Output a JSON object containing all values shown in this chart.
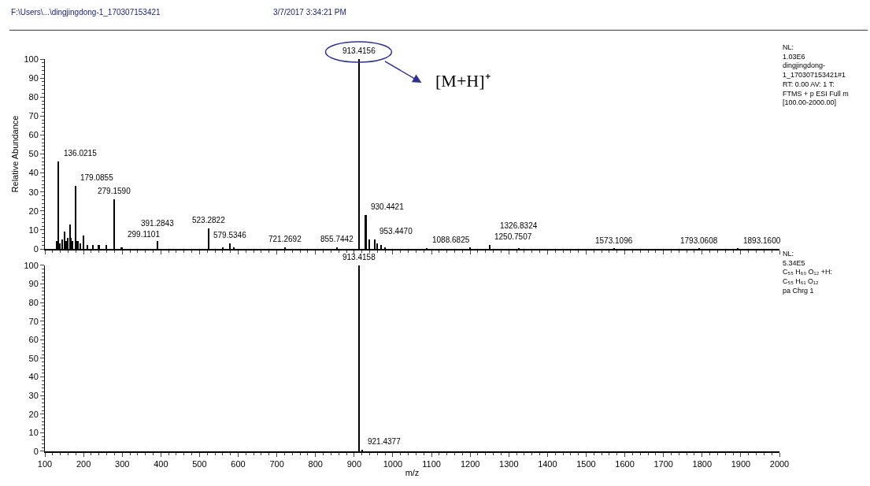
{
  "chart_data": [
    {
      "type": "bar",
      "ylabel": "Relative Abundance",
      "color": "#000000",
      "tick_labels": "y",
      "x": [
        132,
        136.0215,
        140,
        146,
        151,
        155,
        160,
        165,
        168,
        172,
        179.0855,
        185,
        192,
        200,
        210,
        225,
        240,
        260,
        279.159,
        299.1101,
        391.2843,
        523.2822,
        560,
        579.5346,
        590,
        721.2692,
        855.7442,
        913.4156,
        930.4421,
        940,
        953.447,
        960,
        970,
        980,
        1088.6825,
        1200,
        1250.7507,
        1326.8324,
        1573.1096,
        1793.0608,
        1893.16
      ],
      "values": [
        4,
        46,
        3,
        5,
        9,
        4,
        6,
        13,
        6,
        4,
        33,
        4,
        3,
        7,
        2,
        2,
        2,
        2,
        26,
        1,
        4,
        11,
        1,
        3,
        1,
        1,
        1,
        100,
        18,
        5,
        5,
        3,
        2,
        1,
        0.5,
        1,
        2,
        0.3,
        0.2,
        0.2,
        0.2
      ],
      "xlim": [
        100,
        2000
      ],
      "xticks": [
        100,
        200,
        300,
        400,
        500,
        600,
        700,
        800,
        900,
        1000,
        1100,
        1200,
        1300,
        1400,
        1500,
        1600,
        1700,
        1800,
        1900,
        2000
      ],
      "ylim": [
        0,
        100
      ],
      "yticks": [
        0,
        10,
        20,
        30,
        40,
        50,
        60,
        70,
        80,
        90,
        100
      ],
      "annotations": [
        "F:\\Users\\...\\dingjingdong-1_170307153421",
        "3/7/2017 3:34:21 PM",
        "NL:\n1.03E6\ndingjingdong-\n1_170307153421#1\nRT: 0.00 AV: 1 T:\nFTMS + p ESI Full m\n[100.00-2000.00]",
        "[M+H]⁺",
        {
          "text": "136.0215",
          "x": 136.0215,
          "y": 46
        },
        {
          "text": "179.0855",
          "x": 179.0855,
          "y": 33
        },
        {
          "text": "279.1590",
          "x": 279.159,
          "y": 26
        },
        {
          "text": "299.1101",
          "x": 299.1101,
          "y": 1
        },
        {
          "text": "391.2843",
          "x": 391.2843,
          "y": 4
        },
        {
          "text": "523.2822",
          "x": 523.2822,
          "y": 11
        },
        {
          "text": "579.5346",
          "x": 579.5346,
          "y": 3
        },
        {
          "text": "721.2692",
          "x": 721.2692,
          "y": 1
        },
        {
          "text": "855.7442",
          "x": 855.7442,
          "y": 1
        },
        {
          "text": "913.4156",
          "x": 913.4156,
          "y": 100
        },
        {
          "text": "930.4421",
          "x": 930.4421,
          "y": 18
        },
        {
          "text": "953.4470",
          "x": 953.447,
          "y": 5
        },
        {
          "text": "1088.6825",
          "x": 1088.6825,
          "y": 0.5
        },
        {
          "text": "1250.7507",
          "x": 1250.7507,
          "y": 2
        },
        {
          "text": "1326.8324",
          "x": 1326.8324,
          "y": 0.3
        },
        {
          "text": "1573.1096",
          "x": 1573.1096,
          "y": 0.2
        },
        {
          "text": "1793.0608",
          "x": 1793.0608,
          "y": 0.2
        },
        {
          "text": "1893.1600",
          "x": 1893.16,
          "y": 0.2
        }
      ]
    },
    {
      "type": "bar",
      "xlabel": "m/z",
      "color": "#000000",
      "x": [
        913.4158,
        921.4377
      ],
      "values": [
        100,
        1
      ],
      "xlim": [
        100,
        2000
      ],
      "xticks": [
        100,
        200,
        300,
        400,
        500,
        600,
        700,
        800,
        900,
        1000,
        1100,
        1200,
        1300,
        1400,
        1500,
        1600,
        1700,
        1800,
        1900,
        2000
      ],
      "ylim": [
        0,
        100
      ],
      "yticks": [
        0,
        10,
        20,
        30,
        40,
        50,
        60,
        70,
        80,
        90,
        100
      ],
      "annotations": [
        "NL:\n5.34E5\nC₅₅ H₆₀ O₁₂ +H:\nC₅₅ H₆₁ O₁₂\npa Chrg 1",
        {
          "text": "913.4158",
          "x": 913.4158,
          "y": 100
        },
        {
          "text": "921.4377",
          "x": 921.4377,
          "y": 1
        }
      ]
    }
  ]
}
